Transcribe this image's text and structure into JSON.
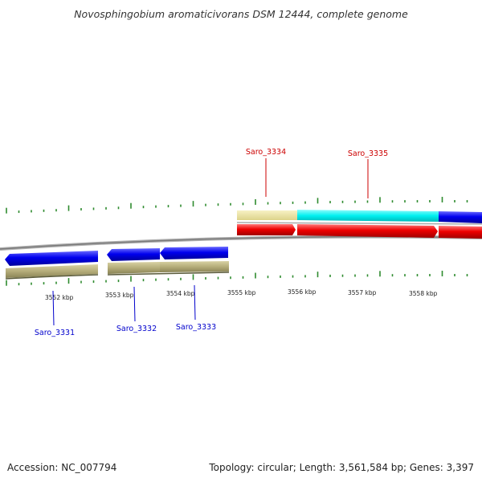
{
  "title": "Novosphingobium aromaticivorans DSM 12444, complete genome",
  "footer": {
    "accession": "Accession: NC_007794",
    "summary": "Topology: circular; Length: 3,561,584 bp; Genes: 3,397"
  },
  "colors": {
    "backbone": "#8a8a8a",
    "tick": "#2e8b2e",
    "forward_label": "#cc0000",
    "reverse_label": "#0000cc",
    "reverse_cds": "#0000ee",
    "forward_cds": "#ee0000",
    "gene_reverse": "#b5ad7a",
    "gene_forward": "#ede49a",
    "rna": "#00f0f0"
  },
  "scale_labels": [
    "3552 kbp",
    "3553 kbp",
    "3554 kbp",
    "3555 kbp",
    "3556 kbp",
    "3557 kbp",
    "3558 kbp"
  ],
  "genes": [
    {
      "id": "Saro_3331",
      "strand": "reverse"
    },
    {
      "id": "Saro_3332",
      "strand": "reverse"
    },
    {
      "id": "Saro_3333",
      "strand": "reverse"
    },
    {
      "id": "Saro_3334",
      "strand": "forward"
    },
    {
      "id": "Saro_3335",
      "strand": "forward"
    }
  ]
}
